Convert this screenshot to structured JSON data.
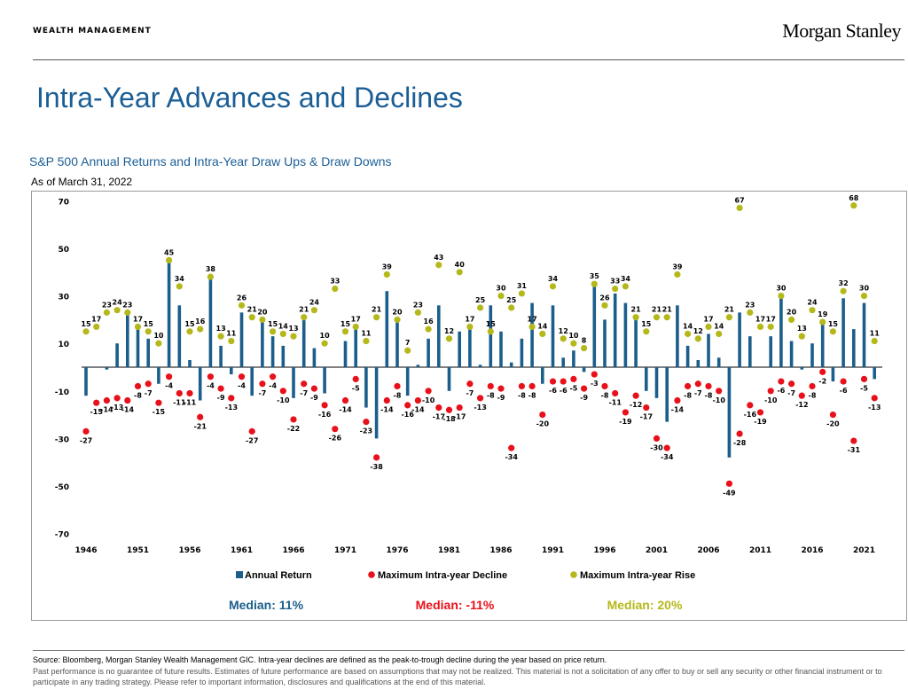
{
  "header": {
    "eyebrow": "WEALTH MANAGEMENT",
    "brand": "Morgan Stanley"
  },
  "page_title": "Intra-Year Advances and Declines",
  "colors": {
    "annual": "#1b5e8c",
    "decline": "#e8101a",
    "rise": "#b5b81a",
    "title": "#1b5e96"
  },
  "chart_data": {
    "type": "bar",
    "title": "S&P 500 Annual Returns and Intra-Year Draw Ups & Draw Downs",
    "subtitle": "As of March 31, 2022",
    "ylim": [
      -70,
      70
    ],
    "y_ticks": [
      70,
      50,
      30,
      10,
      -10,
      -30,
      -50,
      -70
    ],
    "x_ticks": [
      "1946",
      "1951",
      "1956",
      "1961",
      "1966",
      "1971",
      "1976",
      "1981",
      "1986",
      "1991",
      "1996",
      "2001",
      "2006",
      "2011",
      "2016",
      "2021"
    ],
    "years": [
      1946,
      1947,
      1948,
      1949,
      1950,
      1951,
      1952,
      1953,
      1954,
      1955,
      1956,
      1957,
      1958,
      1959,
      1960,
      1961,
      1962,
      1963,
      1964,
      1965,
      1966,
      1967,
      1968,
      1969,
      1970,
      1971,
      1972,
      1973,
      1974,
      1975,
      1976,
      1977,
      1978,
      1979,
      1980,
      1981,
      1982,
      1983,
      1984,
      1985,
      1986,
      1987,
      1988,
      1989,
      1990,
      1991,
      1992,
      1993,
      1994,
      1995,
      1996,
      1997,
      1998,
      1999,
      2000,
      2001,
      2002,
      2003,
      2004,
      2005,
      2006,
      2007,
      2008,
      2009,
      2010,
      2011,
      2012,
      2013,
      2014,
      2015,
      2016,
      2017,
      2018,
      2019,
      2020,
      2021,
      2022
    ],
    "series": [
      {
        "name": "Annual Return",
        "type": "bar",
        "values": [
          -12,
          0,
          -1,
          10,
          22,
          16,
          12,
          -7,
          45,
          26,
          3,
          -14,
          38,
          9,
          -3,
          23,
          -12,
          19,
          13,
          9,
          -13,
          20,
          8,
          -11,
          0,
          11,
          16,
          -17,
          -30,
          32,
          19,
          -12,
          1,
          12,
          26,
          -10,
          15,
          17,
          1,
          26,
          15,
          2,
          12,
          27,
          -7,
          26,
          4,
          7,
          -2,
          34,
          20,
          31,
          27,
          20,
          -10,
          -13,
          -23,
          26,
          9,
          3,
          14,
          4,
          -38,
          23,
          13,
          0,
          13,
          30,
          11,
          -1,
          10,
          19,
          -6,
          29,
          16,
          27,
          -5
        ],
        "labeled": false
      },
      {
        "name": "Maximum Intra-year Decline",
        "type": "scatter",
        "values": [
          -27,
          -15,
          -14,
          -13,
          -14,
          -8,
          -7,
          -15,
          -4,
          -11,
          -11,
          -21,
          -4,
          -9,
          -13,
          -4,
          -27,
          -7,
          -4,
          -10,
          -22,
          -7,
          -9,
          -16,
          -26,
          -14,
          -5,
          -23,
          -38,
          -14,
          -8,
          -16,
          -14,
          -10,
          -17,
          -18,
          -17,
          -7,
          -13,
          -8,
          -9,
          -34,
          -8,
          -8,
          -20,
          -6,
          -6,
          -5,
          -9,
          -3,
          -8,
          -11,
          -19,
          -12,
          -17,
          -30,
          -34,
          -14,
          -8,
          -7,
          -8,
          -10,
          -49,
          -28,
          -16,
          -19,
          -10,
          -6,
          -7,
          -12,
          -8,
          -2,
          -20,
          -6,
          -31,
          -5,
          -13
        ]
      },
      {
        "name": "Maximum Intra-year Rise",
        "type": "scatter",
        "values": [
          15,
          17,
          23,
          24,
          23,
          17,
          15,
          10,
          45,
          34,
          15,
          16,
          38,
          13,
          11,
          26,
          21,
          20,
          15,
          14,
          13,
          21,
          24,
          10,
          33,
          15,
          17,
          11,
          21,
          39,
          20,
          7,
          23,
          16,
          43,
          12,
          40,
          17,
          25,
          15,
          30,
          25,
          31,
          17,
          14,
          34,
          12,
          10,
          8,
          35,
          26,
          33,
          34,
          21,
          15,
          21,
          21,
          39,
          14,
          12,
          17,
          14,
          21,
          67,
          23,
          17,
          17,
          30,
          20,
          13,
          24,
          19,
          15,
          32,
          68,
          30,
          11
        ]
      }
    ],
    "legend": [
      "Annual Return",
      "Maximum Intra-year Decline",
      "Maximum Intra-year Rise"
    ],
    "legend_placement": "bottom",
    "medians": [
      {
        "label": "Median:",
        "value": "11%"
      },
      {
        "label": "Median:",
        "value": "-11%"
      },
      {
        "label": "Median:",
        "value": "20%"
      }
    ],
    "grid": false
  },
  "footer": {
    "source": "Source: Bloomberg, Morgan Stanley Wealth Management GIC. Intra-year declines are defined as the peak-to-trough decline during the year based on price return.",
    "disclaimer": "Past performance is no guarantee of future results. Estimates of future performance are based on assumptions that may not be realized. This material is not a solicitation of any offer to buy or sell any security or other financial instrument or to participate in any trading strategy. Please refer to important information, disclosures and qualifications at the end of this material."
  }
}
